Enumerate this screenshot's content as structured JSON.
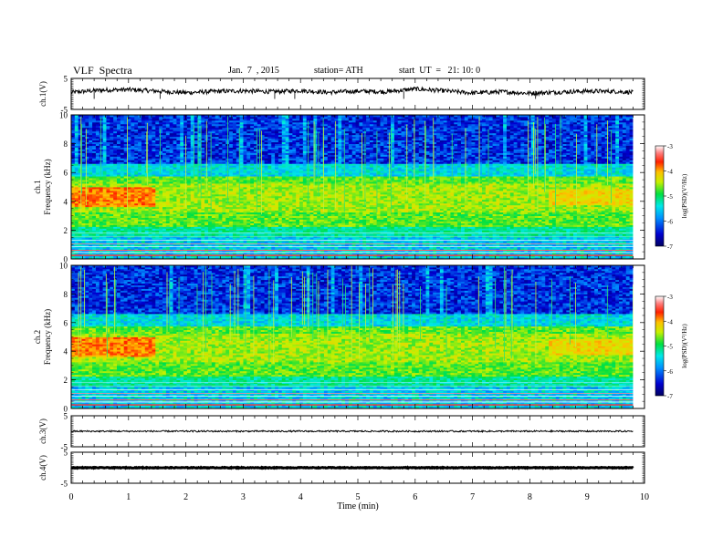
{
  "header": {
    "title": "VLF  Spectra",
    "date": "Jan.  7  , 2015",
    "station": "station= ATH",
    "start": "start  UT  =   21: 10: 0"
  },
  "chart_data": [
    {
      "type": "line",
      "name": "ch1-waveform",
      "ylabel": "ch.1(V)",
      "ylim": [
        -5,
        5
      ],
      "yticks": [
        "5",
        "-5"
      ],
      "xlim": [
        0,
        10
      ],
      "x": [
        0,
        0.5,
        1,
        1.5,
        2,
        2.5,
        3,
        3.5,
        4,
        4.5,
        5,
        5.5,
        6,
        6.5,
        7,
        7.5,
        8,
        8.5,
        9,
        9.5,
        9.8
      ],
      "values": [
        0.5,
        1.2,
        1.4,
        0.9,
        0.4,
        0.8,
        1.0,
        0.7,
        1.1,
        0.5,
        0.9,
        0.7,
        1.6,
        1.0,
        0.3,
        0.7,
        0.2,
        0.6,
        0.9,
        0.8,
        0.5
      ]
    },
    {
      "type": "heatmap",
      "name": "ch1-spectrogram",
      "ylabel": "ch.1\nFrequency  (kHz)",
      "ylim": [
        0,
        10
      ],
      "yticks": [
        "0",
        "2",
        "4",
        "6",
        "8",
        "10"
      ],
      "xlim": [
        0,
        10
      ],
      "colorbar": {
        "label": "log(PSD)(V²/Hz)",
        "range": [
          -7,
          -3
        ],
        "ticks": [
          "-3",
          "-4",
          "-5",
          "-6",
          "-7"
        ]
      }
    },
    {
      "type": "heatmap",
      "name": "ch2-spectrogram",
      "ylabel": "ch.2\nFrequency  (kHz)",
      "ylim": [
        0,
        10
      ],
      "yticks": [
        "0",
        "2",
        "4",
        "6",
        "8",
        "10"
      ],
      "xlim": [
        0,
        10
      ],
      "colorbar": {
        "label": "log(PSD)(V²/Hz)",
        "range": [
          -7,
          -3
        ],
        "ticks": [
          "-3",
          "-4",
          "-5",
          "-6",
          "-7"
        ]
      }
    },
    {
      "type": "line",
      "name": "ch3-waveform",
      "ylabel": "ch.3(V)",
      "ylim": [
        -5,
        5
      ],
      "yticks": [
        "5",
        "-5"
      ],
      "xlim": [
        0,
        10
      ],
      "x": [
        0,
        9.8
      ],
      "values": [
        0,
        0
      ]
    },
    {
      "type": "line",
      "name": "ch4-waveform",
      "ylabel": "ch.4(V)",
      "ylim": [
        -5,
        5
      ],
      "yticks": [
        "5",
        "-5"
      ],
      "xlim": [
        0,
        10
      ],
      "x": [
        0,
        9.8
      ],
      "values": [
        0,
        0
      ]
    }
  ],
  "xaxis": {
    "label": "Time  (min)",
    "ticks": [
      "0",
      "1",
      "2",
      "3",
      "4",
      "5",
      "6",
      "7",
      "8",
      "9",
      "10"
    ]
  }
}
